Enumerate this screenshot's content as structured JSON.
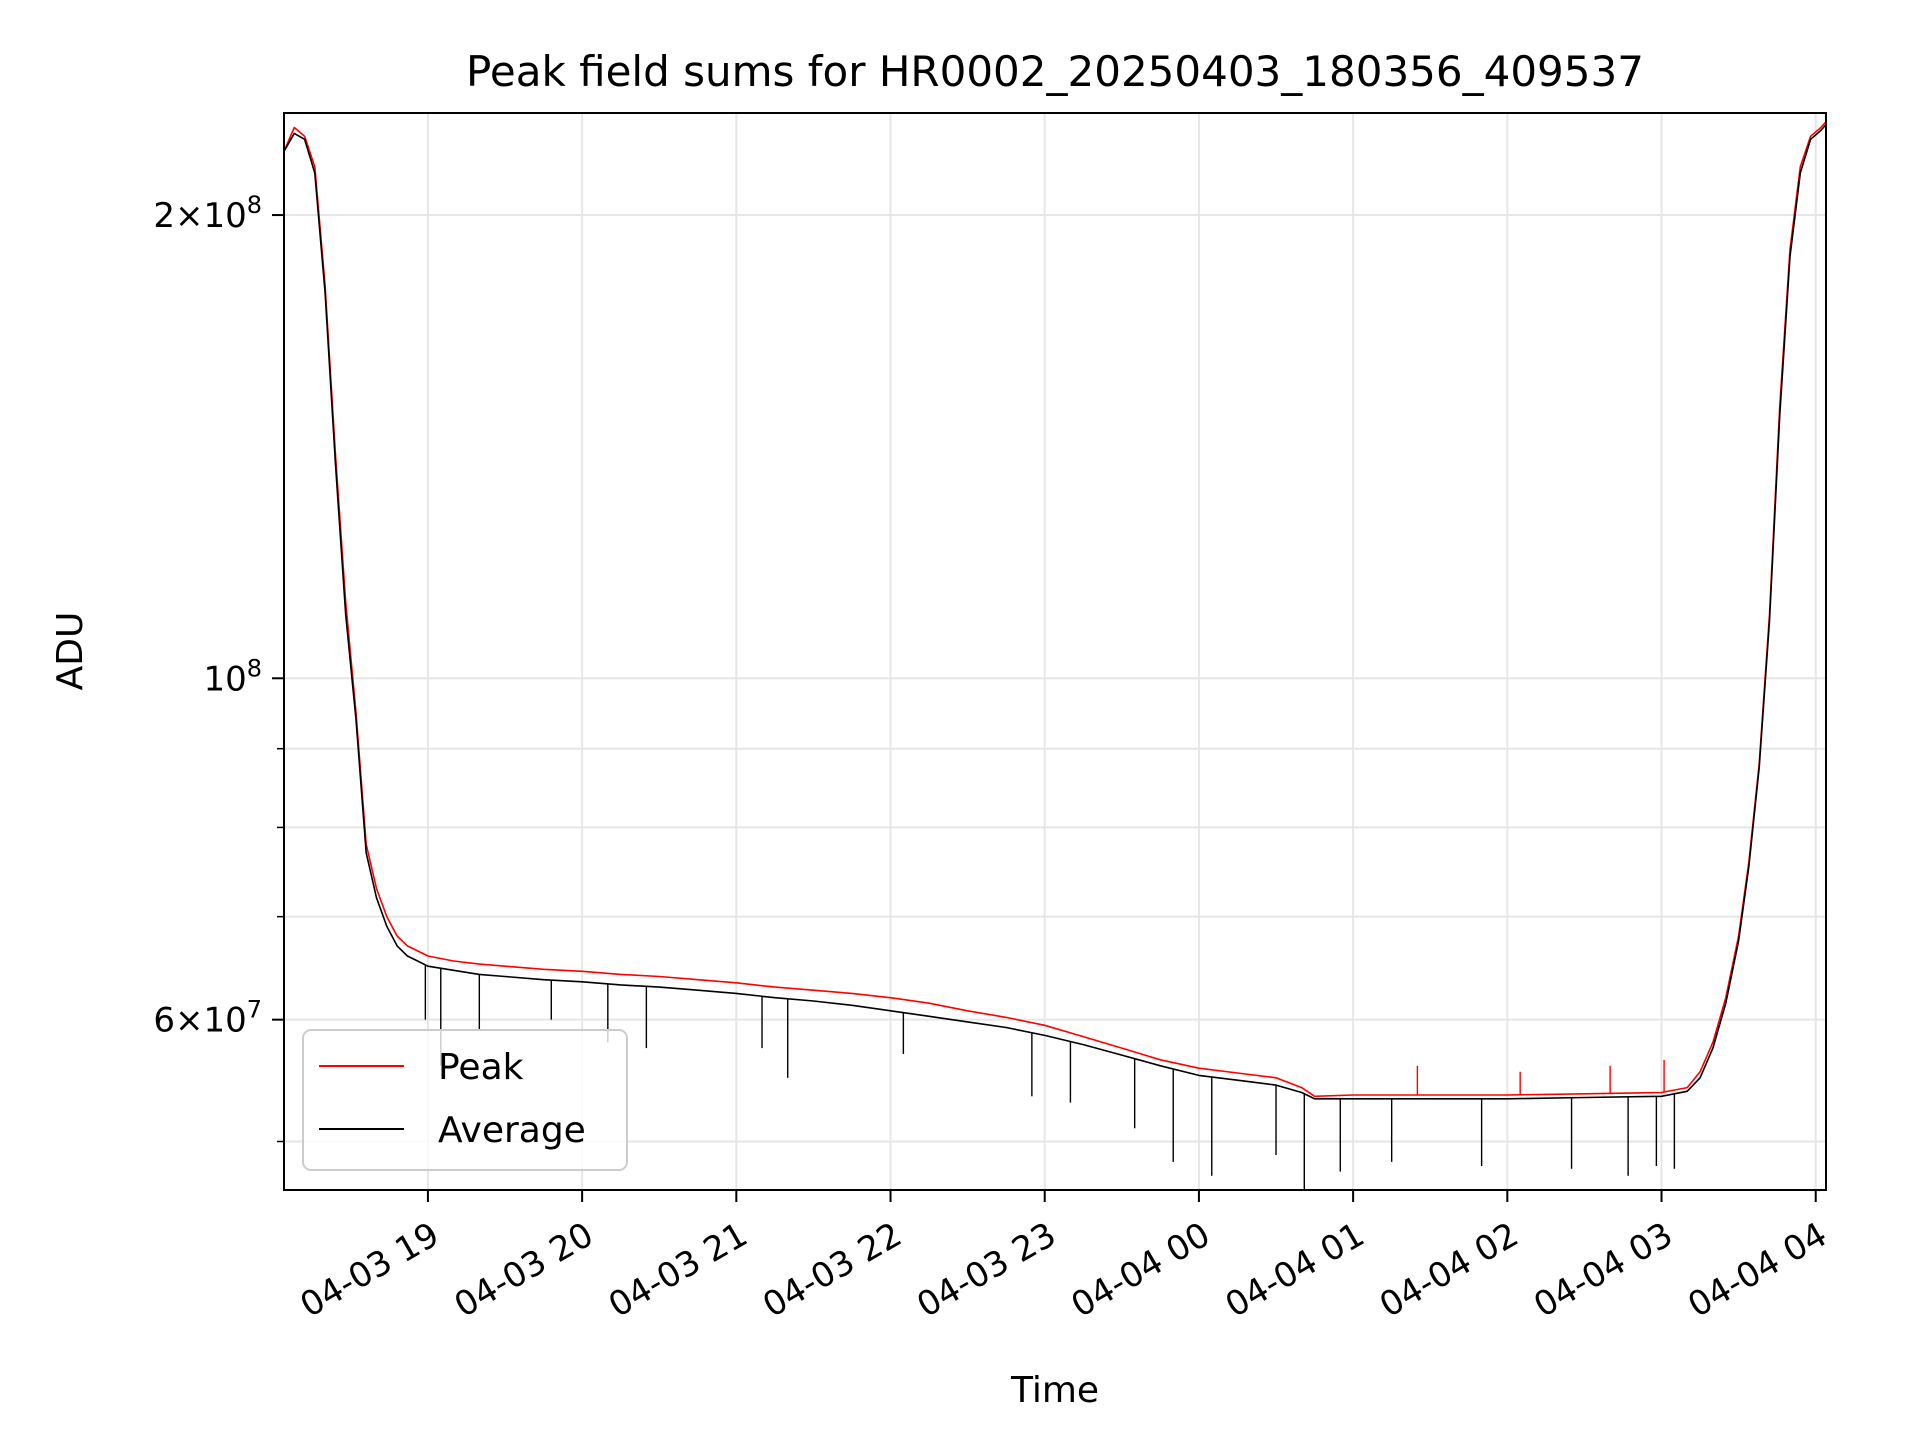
{
  "chart_data": {
    "type": "line",
    "title": "Peak field sums for HR0002_20250403_180356_409537",
    "xlabel": "Time",
    "ylabel": "ADU",
    "yscale": "log",
    "ylim": [
      46500000,
      233000000
    ],
    "xlim": [
      "2025-04-03 18:04",
      "2025-04-04 04:04"
    ],
    "x_ticks": [
      {
        "value": "2025-04-03 19:00",
        "label": "04-03 19"
      },
      {
        "value": "2025-04-03 20:00",
        "label": "04-03 20"
      },
      {
        "value": "2025-04-03 21:00",
        "label": "04-03 21"
      },
      {
        "value": "2025-04-03 22:00",
        "label": "04-03 22"
      },
      {
        "value": "2025-04-03 23:00",
        "label": "04-03 23"
      },
      {
        "value": "2025-04-04 00:00",
        "label": "04-04 00"
      },
      {
        "value": "2025-04-04 01:00",
        "label": "04-04 01"
      },
      {
        "value": "2025-04-04 02:00",
        "label": "04-04 02"
      },
      {
        "value": "2025-04-04 03:00",
        "label": "04-04 03"
      },
      {
        "value": "2025-04-04 04:00",
        "label": "04-04 04"
      }
    ],
    "y_ticks": [
      {
        "value": 60000000,
        "mantissa": "6",
        "exponent": "7"
      },
      {
        "value": 100000000,
        "mantissa": "",
        "exponent": "8"
      },
      {
        "value": 200000000,
        "mantissa": "2",
        "exponent": "8"
      }
    ],
    "y_minor_ticks": [
      50000000,
      70000000,
      80000000,
      90000000
    ],
    "grid": true,
    "legend": {
      "placement": "lower-left",
      "entries": [
        "Peak",
        "Average"
      ]
    },
    "series": [
      {
        "name": "Peak",
        "color": "#ff0000",
        "x": [
          "2025-04-03 18:04",
          "2025-04-03 18:08",
          "2025-04-03 18:12",
          "2025-04-03 18:16",
          "2025-04-03 18:20",
          "2025-04-03 18:24",
          "2025-04-03 18:28",
          "2025-04-03 18:32",
          "2025-04-03 18:36",
          "2025-04-03 18:40",
          "2025-04-03 18:44",
          "2025-04-03 18:48",
          "2025-04-03 18:52",
          "2025-04-03 18:56",
          "2025-04-03 19:00",
          "2025-04-03 19:10",
          "2025-04-03 19:20",
          "2025-04-03 19:30",
          "2025-04-03 19:45",
          "2025-04-03 20:00",
          "2025-04-03 20:15",
          "2025-04-03 20:30",
          "2025-04-03 20:45",
          "2025-04-03 21:00",
          "2025-04-03 21:15",
          "2025-04-03 21:30",
          "2025-04-03 21:45",
          "2025-04-03 22:00",
          "2025-04-03 22:15",
          "2025-04-03 22:30",
          "2025-04-03 22:45",
          "2025-04-03 23:00",
          "2025-04-03 23:15",
          "2025-04-03 23:30",
          "2025-04-03 23:45",
          "2025-04-04 00:00",
          "2025-04-04 00:15",
          "2025-04-04 00:30",
          "2025-04-04 00:40",
          "2025-04-04 00:45",
          "2025-04-04 01:00",
          "2025-04-04 01:30",
          "2025-04-04 02:00",
          "2025-04-04 02:30",
          "2025-04-04 03:00",
          "2025-04-04 03:10",
          "2025-04-04 03:15",
          "2025-04-04 03:20",
          "2025-04-04 03:25",
          "2025-04-04 03:30",
          "2025-04-04 03:34",
          "2025-04-04 03:38",
          "2025-04-04 03:42",
          "2025-04-04 03:46",
          "2025-04-04 03:50",
          "2025-04-04 03:54",
          "2025-04-04 03:58",
          "2025-04-04 04:02",
          "2025-04-04 04:04"
        ],
        "values": [
          220000000,
          228000000,
          225000000,
          215000000,
          180000000,
          140000000,
          112000000,
          95000000,
          78000000,
          73000000,
          70000000,
          68000000,
          67000000,
          66500000,
          66000000,
          65500000,
          65200000,
          65000000,
          64700000,
          64500000,
          64200000,
          64000000,
          63700000,
          63400000,
          63000000,
          62700000,
          62400000,
          62000000,
          61500000,
          60800000,
          60200000,
          59500000,
          58500000,
          57500000,
          56500000,
          55800000,
          55400000,
          55000000,
          54200000,
          53500000,
          53600000,
          53600000,
          53600000,
          53700000,
          53800000,
          54200000,
          55500000,
          58000000,
          62000000,
          68000000,
          76000000,
          88000000,
          110000000,
          150000000,
          190000000,
          215000000,
          225000000,
          228000000,
          230000000
        ]
      },
      {
        "name": "Average",
        "color": "#000000",
        "x": [
          "2025-04-03 18:04",
          "2025-04-03 18:08",
          "2025-04-03 18:12",
          "2025-04-03 18:16",
          "2025-04-03 18:20",
          "2025-04-03 18:24",
          "2025-04-03 18:28",
          "2025-04-03 18:32",
          "2025-04-03 18:36",
          "2025-04-03 18:40",
          "2025-04-03 18:44",
          "2025-04-03 18:48",
          "2025-04-03 18:52",
          "2025-04-03 18:56",
          "2025-04-03 19:00",
          "2025-04-03 19:10",
          "2025-04-03 19:20",
          "2025-04-03 19:30",
          "2025-04-03 19:45",
          "2025-04-03 20:00",
          "2025-04-03 20:15",
          "2025-04-03 20:30",
          "2025-04-03 20:45",
          "2025-04-03 21:00",
          "2025-04-03 21:15",
          "2025-04-03 21:30",
          "2025-04-03 21:45",
          "2025-04-03 22:00",
          "2025-04-03 22:15",
          "2025-04-03 22:30",
          "2025-04-03 22:45",
          "2025-04-03 23:00",
          "2025-04-03 23:15",
          "2025-04-03 23:30",
          "2025-04-03 23:45",
          "2025-04-04 00:00",
          "2025-04-04 00:15",
          "2025-04-04 00:30",
          "2025-04-04 00:40",
          "2025-04-04 00:45",
          "2025-04-04 01:00",
          "2025-04-04 01:30",
          "2025-04-04 02:00",
          "2025-04-04 02:30",
          "2025-04-04 03:00",
          "2025-04-04 03:10",
          "2025-04-04 03:15",
          "2025-04-04 03:20",
          "2025-04-04 03:25",
          "2025-04-04 03:30",
          "2025-04-04 03:34",
          "2025-04-04 03:38",
          "2025-04-04 03:42",
          "2025-04-04 03:46",
          "2025-04-04 03:50",
          "2025-04-04 03:54",
          "2025-04-04 03:58",
          "2025-04-04 04:02",
          "2025-04-04 04:04"
        ],
        "values": [
          220000000,
          226000000,
          224000000,
          213000000,
          178000000,
          138000000,
          110000000,
          94000000,
          77000000,
          72000000,
          69000000,
          67000000,
          66000000,
          65500000,
          65000000,
          64600000,
          64200000,
          64000000,
          63700000,
          63500000,
          63200000,
          63000000,
          62700000,
          62400000,
          62000000,
          61700000,
          61300000,
          60800000,
          60300000,
          59800000,
          59300000,
          58600000,
          57800000,
          56900000,
          56000000,
          55200000,
          54800000,
          54400000,
          53800000,
          53300000,
          53300000,
          53300000,
          53300000,
          53400000,
          53500000,
          53900000,
          55000000,
          57500000,
          61500000,
          67500000,
          75500000,
          87500000,
          109000000,
          148000000,
          188000000,
          213000000,
          224000000,
          227000000,
          229000000
        ]
      }
    ],
    "dips": {
      "Average": [
        {
          "x": "2025-04-03 18:59",
          "value": 60000000
        },
        {
          "x": "2025-04-03 19:05",
          "value": 56000000
        },
        {
          "x": "2025-04-03 19:20",
          "value": 59000000
        },
        {
          "x": "2025-04-03 19:48",
          "value": 60000000
        },
        {
          "x": "2025-04-03 20:10",
          "value": 58000000
        },
        {
          "x": "2025-04-03 20:25",
          "value": 57500000
        },
        {
          "x": "2025-04-03 21:10",
          "value": 57500000
        },
        {
          "x": "2025-04-03 21:20",
          "value": 55000000
        },
        {
          "x": "2025-04-03 22:05",
          "value": 57000000
        },
        {
          "x": "2025-04-03 22:55",
          "value": 53500000
        },
        {
          "x": "2025-04-03 23:10",
          "value": 53000000
        },
        {
          "x": "2025-04-03 23:35",
          "value": 51000000
        },
        {
          "x": "2025-04-03 23:50",
          "value": 48500000
        },
        {
          "x": "2025-04-04 00:05",
          "value": 47500000
        },
        {
          "x": "2025-04-04 00:30",
          "value": 49000000
        },
        {
          "x": "2025-04-04 00:41",
          "value": 46500000
        },
        {
          "x": "2025-04-04 00:55",
          "value": 47800000
        },
        {
          "x": "2025-04-04 01:15",
          "value": 48500000
        },
        {
          "x": "2025-04-04 01:50",
          "value": 48200000
        },
        {
          "x": "2025-04-04 02:25",
          "value": 48000000
        },
        {
          "x": "2025-04-04 02:47",
          "value": 47500000
        },
        {
          "x": "2025-04-04 02:58",
          "value": 48200000
        },
        {
          "x": "2025-04-04 03:05",
          "value": 48000000
        }
      ],
      "Peak": [
        {
          "x": "2025-04-04 01:25",
          "value": 56000000
        },
        {
          "x": "2025-04-04 02:05",
          "value": 55500000
        },
        {
          "x": "2025-04-04 02:40",
          "value": 56000000
        },
        {
          "x": "2025-04-04 03:01",
          "value": 56500000
        }
      ]
    }
  }
}
